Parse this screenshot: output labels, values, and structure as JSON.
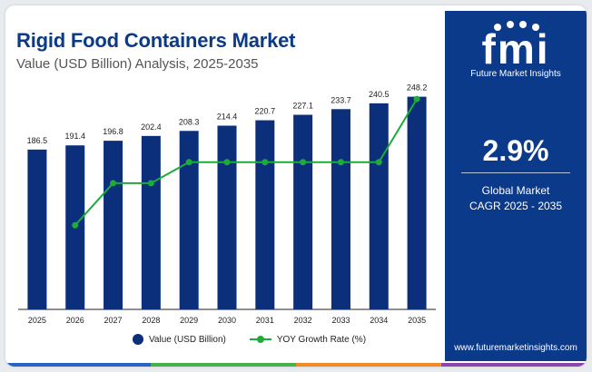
{
  "header": {
    "title": "Rigid Food Containers Market",
    "subtitle": "Value (USD Billion) Analysis, 2025-2035"
  },
  "chart_data": {
    "type": "bar",
    "categories": [
      "2025",
      "2026",
      "2027",
      "2028",
      "2029",
      "2030",
      "2031",
      "2032",
      "2033",
      "2034",
      "2035"
    ],
    "series": [
      {
        "name": "Value (USD Billion)",
        "type": "bar",
        "values": [
          186.5,
          191.4,
          196.8,
          202.4,
          208.3,
          214.4,
          220.7,
          227.1,
          233.7,
          240.5,
          248.2
        ],
        "labels": [
          "186.5",
          "191.4",
          "196.8",
          "202.4",
          "208.3",
          "214.4",
          "220.7",
          "227.1",
          "233.7",
          "240.5",
          "248.2"
        ]
      },
      {
        "name": "YOY Growth Rate (%)",
        "type": "line",
        "values": [
          null,
          2.6,
          2.8,
          2.8,
          2.9,
          2.9,
          2.9,
          2.9,
          2.9,
          2.9,
          3.2
        ]
      }
    ],
    "ylim": [
      0,
      270
    ],
    "line_ylim": [
      2.2,
      3.3
    ],
    "grid": false,
    "legend": "bottom-center"
  },
  "legend": {
    "bar_label": "Value (USD Billion)",
    "line_label": "YOY Growth Rate (%)"
  },
  "panel": {
    "brand": "Future Market Insights",
    "cagr_value": "2.9%",
    "cagr_line1": "Global Market",
    "cagr_line2": "CAGR 2025 - 2035",
    "website": "www.futuremarketinsights.com"
  },
  "colors": {
    "bar": "#0b2f7a",
    "line": "#1dab3a",
    "panel": "#0b3a8a",
    "title": "#0b3a86",
    "strip": [
      "#2b63c4",
      "#46b04a",
      "#f08a24",
      "#8e44ad"
    ]
  }
}
